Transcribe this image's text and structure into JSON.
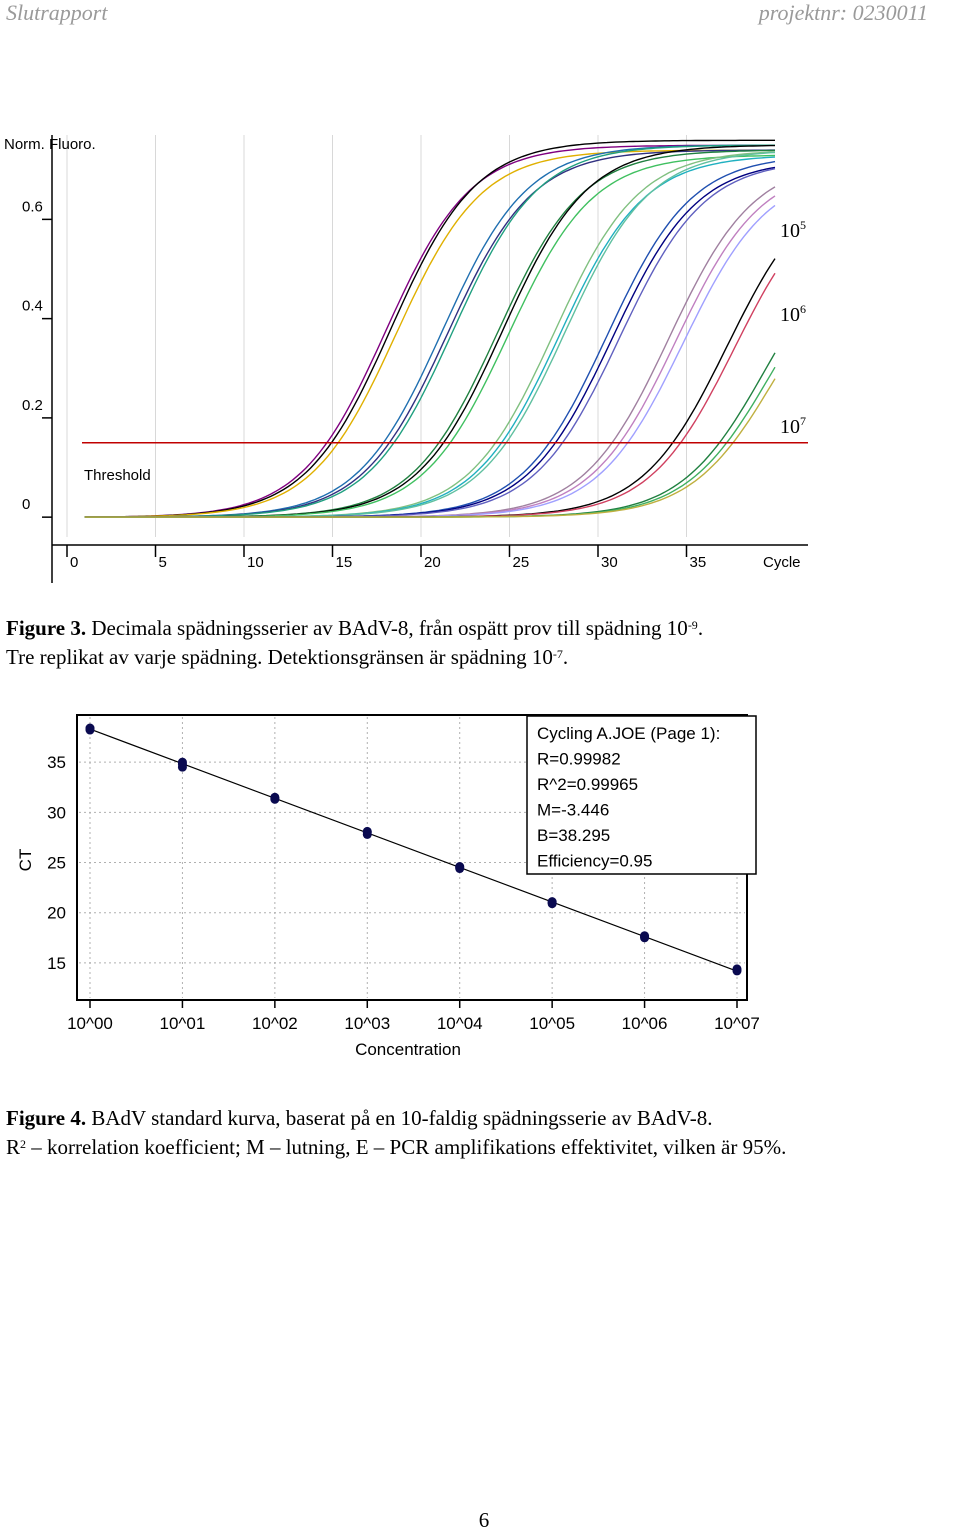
{
  "header": {
    "left": "Slutrapport",
    "right": "projektnr: 0230011"
  },
  "figure3": {
    "caption_label": "Figure 3.",
    "caption_line1": "Decimala spädningsserier av BAdV-8, från ospätt prov till spädning 10",
    "caption_line1_exp": "-9",
    "caption_line1_end": ".",
    "caption_line2": "Tre replikat av varje spädning. Detektionsgränsen är spädning 10",
    "caption_line2_exp": "-7",
    "caption_line2_end": ".",
    "chart_data": {
      "type": "line",
      "ylabel": "Norm. Fluoro.",
      "xlabel": "Cycle",
      "x_ticks": [
        "0",
        "5",
        "10",
        "15",
        "20",
        "25",
        "30",
        "35"
      ],
      "y_ticks": [
        "0",
        "0.2",
        "0.4",
        "0.6"
      ],
      "xlim": [
        0,
        40
      ],
      "ylim": [
        -0.04,
        0.77
      ],
      "threshold": {
        "label": "Threshold",
        "value": 0.15,
        "color": "#c00000"
      },
      "annotations": [
        {
          "base": "10",
          "exp": "5"
        },
        {
          "base": "10",
          "exp": "6"
        },
        {
          "base": "10",
          "exp": "7"
        }
      ],
      "series": [
        {
          "midpoint": 18.0,
          "plateau": 0.75,
          "color": "#800080"
        },
        {
          "midpoint": 18.3,
          "plateau": 0.76,
          "color": "#000000"
        },
        {
          "midpoint": 18.6,
          "plateau": 0.74,
          "color": "#e0b000"
        },
        {
          "midpoint": 21.2,
          "plateau": 0.75,
          "color": "#1f6fb0"
        },
        {
          "midpoint": 21.5,
          "plateau": 0.74,
          "color": "#303080"
        },
        {
          "midpoint": 21.8,
          "plateau": 0.75,
          "color": "#20a080"
        },
        {
          "midpoint": 24.3,
          "plateau": 0.74,
          "color": "#208040"
        },
        {
          "midpoint": 24.6,
          "plateau": 0.75,
          "color": "#000000"
        },
        {
          "midpoint": 24.9,
          "plateau": 0.73,
          "color": "#40c060"
        },
        {
          "midpoint": 27.5,
          "plateau": 0.74,
          "color": "#80c080"
        },
        {
          "midpoint": 27.8,
          "plateau": 0.73,
          "color": "#20b0c0"
        },
        {
          "midpoint": 28.1,
          "plateau": 0.74,
          "color": "#60c0a0"
        },
        {
          "midpoint": 30.5,
          "plateau": 0.73,
          "color": "#1f4fb0"
        },
        {
          "midpoint": 30.8,
          "plateau": 0.72,
          "color": "#000080"
        },
        {
          "midpoint": 31.2,
          "plateau": 0.72,
          "color": "#6060c0"
        },
        {
          "midpoint": 34.0,
          "plateau": 0.72,
          "color": "#a080a0"
        },
        {
          "midpoint": 34.4,
          "plateau": 0.71,
          "color": "#c080c0"
        },
        {
          "midpoint": 34.8,
          "plateau": 0.7,
          "color": "#a0a0ff"
        },
        {
          "midpoint": 37.3,
          "plateau": 0.69,
          "color": "#000000"
        },
        {
          "midpoint": 37.7,
          "plateau": 0.68,
          "color": "#d04060"
        },
        {
          "midpoint": 39.5,
          "plateau": 0.6,
          "color": "#208040"
        },
        {
          "midpoint": 39.8,
          "plateau": 0.58,
          "color": "#40b060"
        },
        {
          "midpoint": 40.1,
          "plateau": 0.57,
          "color": "#c0b040"
        }
      ]
    }
  },
  "figure4": {
    "caption_label": "Figure 4.",
    "caption_line1": "BAdV standard kurva, baserat på en 10-faldig spädningsserie av BAdV-8.",
    "caption_line2_start": "R",
    "caption_line2_exp": "2",
    "caption_line2_rest": " – korrelation koefficient; M – lutning, E – PCR amplifikations effektivitet, vilken är 95%.",
    "chart_data": {
      "type": "scatter",
      "xlabel": "Concentration",
      "ylabel": "CT",
      "x_ticks": [
        "10^00",
        "10^01",
        "10^02",
        "10^03",
        "10^04",
        "10^05",
        "10^06",
        "10^07"
      ],
      "y_ticks": [
        "15",
        "20",
        "25",
        "30",
        "35"
      ],
      "xlim": [
        -0.05,
        7.1
      ],
      "ylim": [
        11.5,
        39.5
      ],
      "regression": {
        "slope": -3.446,
        "intercept": 38.295
      },
      "points": [
        {
          "x": 0,
          "y": 38.3
        },
        {
          "x": 0,
          "y": 38.4
        },
        {
          "x": 0,
          "y": 38.2
        },
        {
          "x": 1,
          "y": 35.0
        },
        {
          "x": 1,
          "y": 34.5
        },
        {
          "x": 1,
          "y": 34.8
        },
        {
          "x": 2,
          "y": 31.4
        },
        {
          "x": 2,
          "y": 31.3
        },
        {
          "x": 2,
          "y": 31.5
        },
        {
          "x": 3,
          "y": 28.0
        },
        {
          "x": 3,
          "y": 27.8
        },
        {
          "x": 3,
          "y": 28.1
        },
        {
          "x": 4,
          "y": 24.6
        },
        {
          "x": 4,
          "y": 24.4
        },
        {
          "x": 4,
          "y": 24.5
        },
        {
          "x": 5,
          "y": 21.0
        },
        {
          "x": 5,
          "y": 21.1
        },
        {
          "x": 5,
          "y": 20.9
        },
        {
          "x": 6,
          "y": 17.6
        },
        {
          "x": 6,
          "y": 17.5
        },
        {
          "x": 6,
          "y": 17.7
        },
        {
          "x": 7,
          "y": 14.3
        },
        {
          "x": 7,
          "y": 14.2
        },
        {
          "x": 7,
          "y": 14.4
        }
      ],
      "stats_box": [
        "Cycling A.JOE (Page 1):",
        "R=0.99982",
        "R^2=0.99965",
        "M=-3.446",
        "B=38.295",
        "Efficiency=0.95"
      ],
      "point_color": "#0a0a50"
    }
  },
  "page_number": "6"
}
